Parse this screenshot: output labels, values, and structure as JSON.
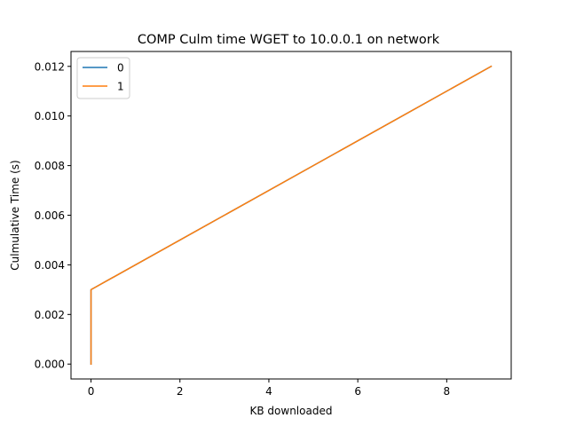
{
  "chart_data": {
    "type": "line",
    "title": "COMP Culm time WGET to 10.0.0.1 on network",
    "xlabel": "KB downloaded",
    "ylabel": "Culmulative Time (s)",
    "xlim": [
      -0.45,
      9.45
    ],
    "ylim": [
      -0.0006,
      0.0126
    ],
    "x_ticks": [
      0,
      2,
      4,
      6,
      8
    ],
    "x_tick_labels": [
      "0",
      "2",
      "4",
      "6",
      "8"
    ],
    "y_ticks": [
      0.0,
      0.002,
      0.004,
      0.006,
      0.008,
      0.01,
      0.012
    ],
    "y_tick_labels": [
      "0.000",
      "0.002",
      "0.004",
      "0.006",
      "0.008",
      "0.010",
      "0.012"
    ],
    "grid": false,
    "legend_position": "top-left",
    "series": [
      {
        "name": "0",
        "color": "#1f77b4",
        "x": [
          0,
          0,
          9
        ],
        "y": [
          0.0,
          0.003,
          0.012
        ]
      },
      {
        "name": "1",
        "color": "#ff7f0e",
        "x": [
          0,
          0,
          9
        ],
        "y": [
          0.0,
          0.003,
          0.012
        ]
      }
    ]
  }
}
